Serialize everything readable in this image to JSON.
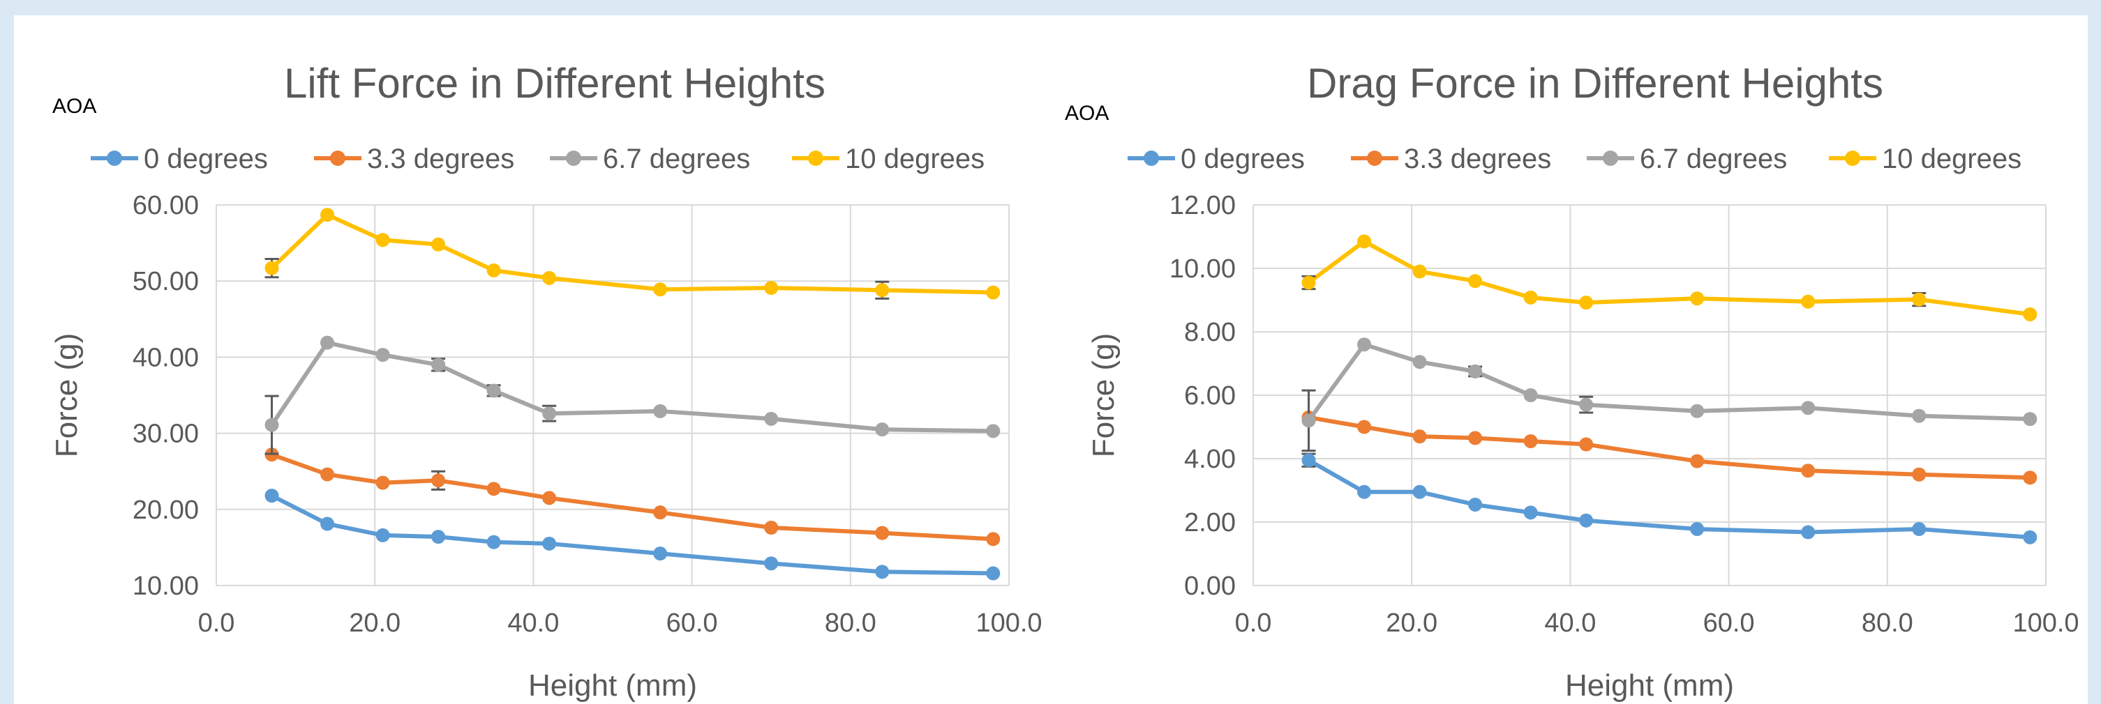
{
  "chart_data": [
    {
      "type": "line",
      "title": "Lift Force in Different Heights",
      "legend_title": "AOA",
      "legend_position": "top",
      "xlabel": "Height (mm)",
      "ylabel": "Force (g)",
      "xlim": [
        0,
        100
      ],
      "ylim": [
        10,
        60
      ],
      "x_ticks": [
        0,
        20,
        40,
        60,
        80,
        100
      ],
      "y_ticks": [
        10,
        20,
        30,
        40,
        50,
        60
      ],
      "x_tick_labels": [
        "0.0",
        "20.0",
        "40.0",
        "60.0",
        "80.0",
        "100.0"
      ],
      "y_tick_labels": [
        "10.00",
        "20.00",
        "30.00",
        "40.00",
        "50.00",
        "60.00"
      ],
      "grid": true,
      "x": [
        7,
        14,
        21,
        28,
        35,
        42,
        56,
        70,
        84,
        98
      ],
      "series": [
        {
          "name": "0 degrees",
          "color": "#5b9bd5",
          "values": [
            21.8,
            18.1,
            16.6,
            16.4,
            15.7,
            15.5,
            14.2,
            12.9,
            11.8,
            11.6
          ],
          "error_bars": []
        },
        {
          "name": "3.3 degrees",
          "color": "#ed7d31",
          "values": [
            27.2,
            24.6,
            23.5,
            23.8,
            22.7,
            21.5,
            19.6,
            17.6,
            16.9,
            16.1
          ],
          "error_bars": [
            {
              "x": 28,
              "err": 1.2
            }
          ]
        },
        {
          "name": "6.7 degrees",
          "color": "#a5a5a5",
          "values": [
            31.1,
            41.9,
            40.3,
            39.0,
            35.6,
            32.6,
            32.9,
            31.9,
            30.5,
            30.3
          ],
          "error_bars": [
            {
              "x": 7,
              "err": 3.8
            },
            {
              "x": 28,
              "err": 0.8
            },
            {
              "x": 35,
              "err": 0.7
            },
            {
              "x": 42,
              "err": 1.0
            }
          ]
        },
        {
          "name": "10 degrees",
          "color": "#ffc000",
          "values": [
            51.7,
            58.7,
            55.4,
            54.8,
            51.4,
            50.4,
            48.9,
            49.1,
            48.8,
            48.5
          ],
          "error_bars": [
            {
              "x": 7,
              "err": 1.2
            },
            {
              "x": 84,
              "err": 1.1
            }
          ]
        }
      ]
    },
    {
      "type": "line",
      "title": "Drag Force in Different Heights",
      "legend_title": "AOA",
      "legend_position": "top",
      "xlabel": "Height (mm)",
      "ylabel": "Force (g)",
      "xlim": [
        0,
        100
      ],
      "ylim": [
        0,
        12
      ],
      "x_ticks": [
        0,
        20,
        40,
        60,
        80,
        100
      ],
      "y_ticks": [
        0,
        2,
        4,
        6,
        8,
        10,
        12
      ],
      "x_tick_labels": [
        "0.0",
        "20.0",
        "40.0",
        "60.0",
        "80.0",
        "100.0"
      ],
      "y_tick_labels": [
        "0.00",
        "2.00",
        "4.00",
        "6.00",
        "8.00",
        "10.00",
        "12.00"
      ],
      "grid": true,
      "x": [
        7,
        14,
        21,
        28,
        35,
        42,
        56,
        70,
        84,
        98
      ],
      "series": [
        {
          "name": "0 degrees",
          "color": "#5b9bd5",
          "values": [
            3.95,
            2.95,
            2.95,
            2.55,
            2.3,
            2.05,
            1.78,
            1.68,
            1.78,
            1.52
          ],
          "error_bars": [
            {
              "x": 7,
              "err": 0.2
            }
          ]
        },
        {
          "name": "3.3 degrees",
          "color": "#ed7d31",
          "values": [
            5.3,
            5.0,
            4.7,
            4.65,
            4.55,
            4.45,
            3.92,
            3.62,
            3.5,
            3.4
          ],
          "error_bars": []
        },
        {
          "name": "6.7 degrees",
          "color": "#a5a5a5",
          "values": [
            5.2,
            7.6,
            7.05,
            6.75,
            6.0,
            5.7,
            5.5,
            5.6,
            5.35,
            5.25
          ],
          "error_bars": [
            {
              "x": 7,
              "err": 0.95
            },
            {
              "x": 28,
              "err": 0.15
            },
            {
              "x": 42,
              "err": 0.25
            }
          ]
        },
        {
          "name": "10 degrees",
          "color": "#ffc000",
          "values": [
            9.55,
            10.85,
            9.9,
            9.6,
            9.08,
            8.92,
            9.05,
            8.95,
            9.02,
            8.55
          ],
          "error_bars": [
            {
              "x": 7,
              "err": 0.2
            },
            {
              "x": 84,
              "err": 0.2
            }
          ]
        }
      ]
    }
  ]
}
